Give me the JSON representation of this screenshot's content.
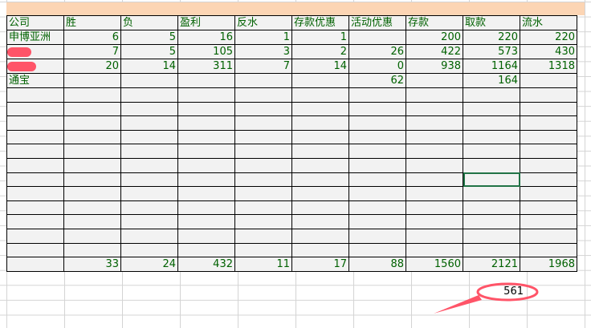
{
  "headers": [
    "公司",
    "胜",
    "负",
    "盈利",
    "反水",
    "存款优惠",
    "活动优惠",
    "存款",
    "取款",
    "流水"
  ],
  "rows": [
    [
      "申博亚洲",
      "6",
      "5",
      "16",
      "1",
      "1",
      "",
      "200",
      "220",
      "220"
    ],
    [
      "",
      "7",
      "5",
      "105",
      "3",
      "2",
      "26",
      "422",
      "573",
      "430"
    ],
    [
      "",
      "20",
      "14",
      "311",
      "7",
      "14",
      "0",
      "938",
      "1164",
      "1318"
    ],
    [
      "通宝",
      "",
      "",
      "",
      "",
      "",
      "62",
      "",
      "164",
      ""
    ]
  ],
  "totals": [
    "",
    "33",
    "24",
    "432",
    "11",
    "17",
    "88",
    "1560",
    "2121",
    "1968"
  ],
  "annotation_value": "561",
  "colors": {
    "header_band": "#fcd5b4",
    "text": "#006100",
    "annotation": "#ff5468",
    "selection": "#217346"
  }
}
